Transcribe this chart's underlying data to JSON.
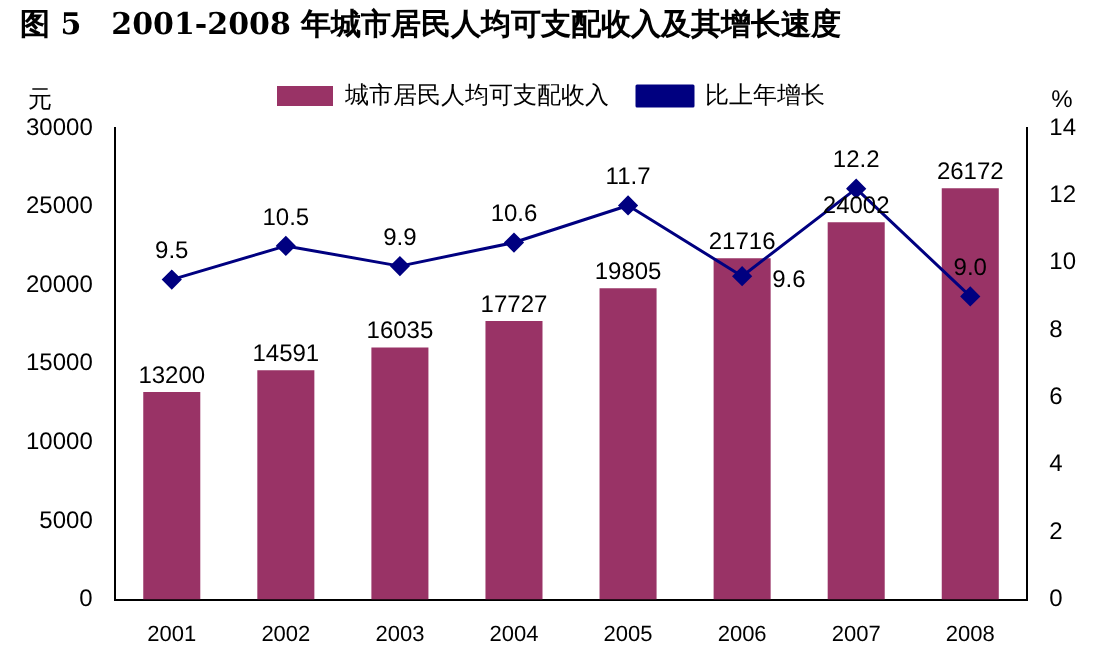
{
  "chart_data": {
    "type": "bar",
    "title": "图 5　2001-2008 年城市居民人均可支配收入及其增长速度",
    "ylabel": "元",
    "y2label": "%",
    "categories": [
      "2001",
      "2002",
      "2003",
      "2004",
      "2005",
      "2006",
      "2007",
      "2008"
    ],
    "series": [
      {
        "name": "城市居民人均可支配收入",
        "color": "#993366",
        "values": [
          13200,
          14591,
          16035,
          17727,
          19805,
          21716,
          24002,
          26172
        ],
        "value_labels": [
          "13200",
          "14591",
          "16035",
          "17727",
          "19805",
          "21716",
          "24002",
          "26172"
        ]
      },
      {
        "name": "比上年增长",
        "type": "line",
        "axis": "y2",
        "color": "#000080",
        "marker": "diamond",
        "values": [
          9.5,
          10.5,
          9.9,
          10.6,
          11.7,
          9.6,
          12.2,
          9.0
        ],
        "value_labels": [
          "9.5",
          "10.5",
          "9.9",
          "10.6",
          "11.7",
          "9.6",
          "12.2",
          "9.0"
        ]
      }
    ],
    "ylim": [
      0,
      30000
    ],
    "yticks": [
      0,
      5000,
      10000,
      15000,
      20000,
      25000,
      30000
    ],
    "y2lim": [
      0,
      14
    ],
    "y2ticks": [
      0,
      2,
      4,
      6,
      8,
      10,
      12,
      14
    ],
    "legend": "top",
    "grid": false
  }
}
